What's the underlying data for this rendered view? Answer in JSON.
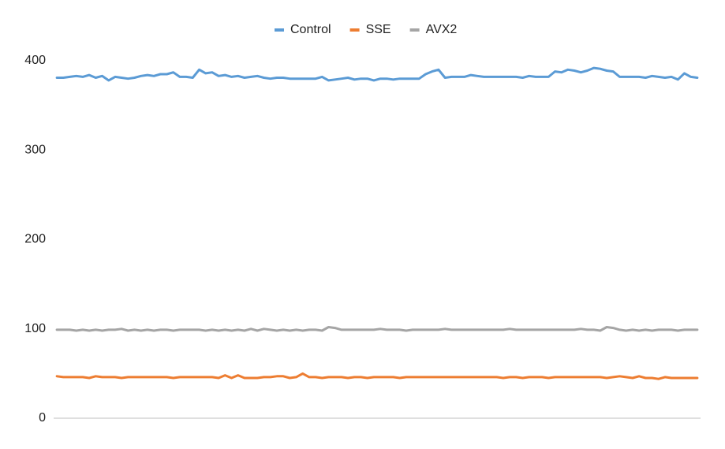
{
  "chart_data": {
    "type": "line",
    "categories": [
      null,
      null,
      null,
      null,
      null,
      null,
      null,
      null,
      null,
      null,
      null,
      null,
      null,
      null,
      null,
      null,
      null,
      null,
      null,
      null,
      null,
      null,
      null,
      null,
      null,
      null,
      null,
      null,
      null,
      null,
      null,
      null,
      null,
      null,
      null,
      null,
      null,
      null,
      null,
      null,
      null,
      null,
      null,
      null,
      null,
      null,
      null,
      null,
      null,
      null,
      null,
      null,
      null,
      null,
      null,
      null,
      null,
      null,
      null,
      null,
      null,
      null,
      null,
      null,
      null,
      null,
      null,
      null,
      null,
      null,
      null,
      null,
      null,
      null,
      null,
      null,
      null,
      null,
      null,
      null,
      null,
      null,
      null,
      null,
      null,
      null,
      null,
      null,
      null,
      null,
      null,
      null,
      null,
      null,
      null,
      null,
      null,
      null,
      null,
      null
    ],
    "series": [
      {
        "name": "Control",
        "color": "#5b9bd5",
        "values": [
          381,
          381,
          382,
          383,
          382,
          384,
          381,
          383,
          378,
          382,
          381,
          380,
          381,
          383,
          384,
          383,
          385,
          385,
          387,
          382,
          382,
          381,
          390,
          386,
          387,
          383,
          384,
          382,
          383,
          381,
          382,
          383,
          381,
          380,
          381,
          381,
          380,
          380,
          380,
          380,
          380,
          382,
          378,
          379,
          380,
          381,
          379,
          380,
          380,
          378,
          380,
          380,
          379,
          380,
          380,
          380,
          380,
          385,
          388,
          390,
          381,
          382,
          382,
          382,
          384,
          383,
          382,
          382,
          382,
          382,
          382,
          382,
          381,
          383,
          382,
          382,
          382,
          388,
          387,
          390,
          389,
          387,
          389,
          392,
          391,
          389,
          388,
          382,
          382,
          382,
          382,
          381,
          383,
          382,
          381,
          382,
          379,
          386,
          382,
          381
        ]
      },
      {
        "name": "SSE",
        "color": "#ed7d31",
        "values": [
          47,
          46,
          46,
          46,
          46,
          45,
          47,
          46,
          46,
          46,
          45,
          46,
          46,
          46,
          46,
          46,
          46,
          46,
          45,
          46,
          46,
          46,
          46,
          46,
          46,
          45,
          48,
          45,
          48,
          45,
          45,
          45,
          46,
          46,
          47,
          47,
          45,
          46,
          50,
          46,
          46,
          45,
          46,
          46,
          46,
          45,
          46,
          46,
          45,
          46,
          46,
          46,
          46,
          45,
          46,
          46,
          46,
          46,
          46,
          46,
          46,
          46,
          46,
          46,
          46,
          46,
          46,
          46,
          46,
          45,
          46,
          46,
          45,
          46,
          46,
          46,
          45,
          46,
          46,
          46,
          46,
          46,
          46,
          46,
          46,
          45,
          46,
          47,
          46,
          45,
          47,
          45,
          45,
          44,
          46,
          45,
          45,
          45,
          45,
          45
        ]
      },
      {
        "name": "AVX2",
        "color": "#a5a5a5",
        "values": [
          99,
          99,
          99,
          98,
          99,
          98,
          99,
          98,
          99,
          99,
          100,
          98,
          99,
          98,
          99,
          98,
          99,
          99,
          98,
          99,
          99,
          99,
          99,
          98,
          99,
          98,
          99,
          98,
          99,
          98,
          100,
          98,
          100,
          99,
          98,
          99,
          98,
          99,
          98,
          99,
          99,
          98,
          102,
          101,
          99,
          99,
          99,
          99,
          99,
          99,
          100,
          99,
          99,
          99,
          98,
          99,
          99,
          99,
          99,
          99,
          100,
          99,
          99,
          99,
          99,
          99,
          99,
          99,
          99,
          99,
          100,
          99,
          99,
          99,
          99,
          99,
          99,
          99,
          99,
          99,
          99,
          100,
          99,
          99,
          98,
          102,
          101,
          99,
          98,
          99,
          98,
          99,
          98,
          99,
          99,
          99,
          98,
          99,
          99,
          99
        ]
      }
    ],
    "ylim": [
      0,
      400
    ],
    "yticks": [
      0,
      100,
      200,
      300,
      400
    ],
    "grid": false,
    "legend": "top"
  }
}
